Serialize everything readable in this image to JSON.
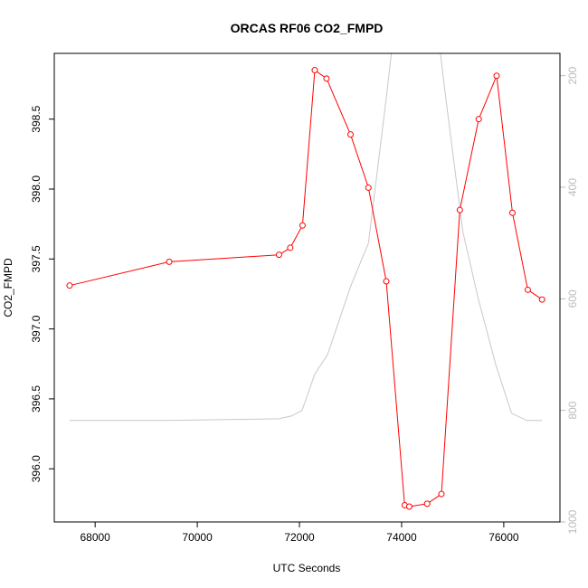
{
  "chart_data": {
    "type": "line",
    "title": "ORCAS RF06 CO2_FMPD",
    "xlabel": "UTC Seconds",
    "ylabel": "CO2_FMPD",
    "xlim": [
      67200,
      77100
    ],
    "ylim": [
      395.62,
      398.97
    ],
    "y2lim": [
      1000,
      160
    ],
    "x_ticks": [
      68000,
      70000,
      72000,
      74000,
      76000
    ],
    "x_tick_labels": [
      "68000",
      "70000",
      "72000",
      "74000",
      "76000"
    ],
    "y_ticks": [
      396.0,
      396.5,
      397.0,
      397.5,
      398.0,
      398.5
    ],
    "y_tick_labels": [
      "396.0",
      "396.5",
      "397.0",
      "397.5",
      "398.0",
      "398.5"
    ],
    "y2_ticks": [
      200,
      400,
      600,
      800,
      1000
    ],
    "y2_tick_labels": [
      "200",
      "400",
      "600",
      "800",
      "1000"
    ],
    "grid": false,
    "series": [
      {
        "axis": "left",
        "color": "#ff0000",
        "markers": "open-circle",
        "x": [
          67500,
          69450,
          71600,
          71820,
          72060,
          72300,
          72530,
          73000,
          73350,
          73700,
          74060,
          74150,
          74500,
          74780,
          75140,
          75510,
          75860,
          76170,
          76470,
          76750
        ],
        "values": [
          397.31,
          397.48,
          397.53,
          397.58,
          397.74,
          398.85,
          398.79,
          398.39,
          398.01,
          397.34,
          395.74,
          395.73,
          395.75,
          395.82,
          397.85,
          398.5,
          398.81,
          397.83,
          397.28,
          397.21
        ]
      },
      {
        "axis": "right",
        "color": "#c8c8c8",
        "markers": "none",
        "x": [
          67500,
          69450,
          71000,
          71600,
          71850,
          72050,
          72300,
          72550,
          73000,
          73350,
          73700,
          74050,
          74500,
          74850,
          75200,
          75500,
          75850,
          76150,
          76450,
          76750
        ],
        "values": [
          818,
          818,
          816,
          815,
          810,
          800,
          735,
          700,
          578,
          500,
          240,
          -40,
          -40,
          230,
          480,
          600,
          720,
          805,
          818,
          818
        ]
      }
    ]
  }
}
